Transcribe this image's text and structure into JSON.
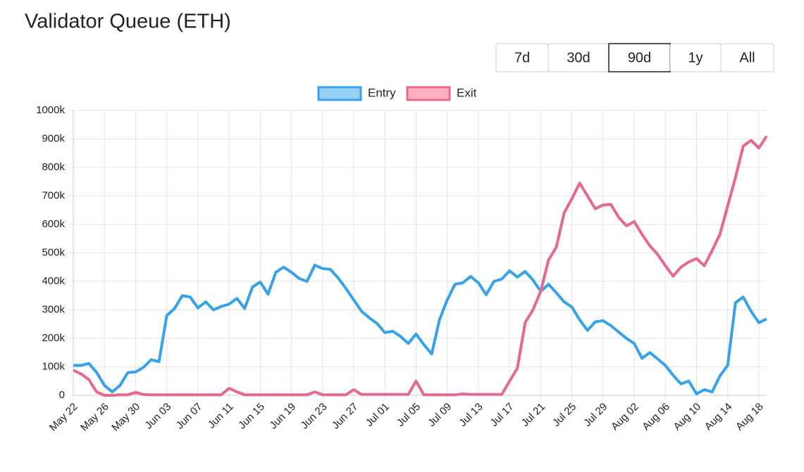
{
  "controls": {
    "ranges": [
      "7d",
      "30d",
      "90d",
      "1y",
      "All"
    ],
    "selected": "90d"
  },
  "chart_data": {
    "type": "line",
    "title": "Validator Queue (ETH)",
    "categories": [
      "May 22",
      null,
      null,
      null,
      "May 26",
      null,
      null,
      null,
      "May 30",
      null,
      null,
      null,
      "Jun 03",
      null,
      null,
      null,
      "Jun 07",
      null,
      null,
      null,
      "Jun 11",
      null,
      null,
      null,
      "Jun 15",
      null,
      null,
      null,
      "Jun 19",
      null,
      null,
      null,
      "Jun 23",
      null,
      null,
      null,
      "Jun 27",
      null,
      null,
      null,
      "Jul 01",
      null,
      null,
      null,
      "Jul 05",
      null,
      null,
      null,
      "Jul 09",
      null,
      null,
      null,
      "Jul 13",
      null,
      null,
      null,
      "Jul 17",
      null,
      null,
      null,
      "Jul 21",
      null,
      null,
      null,
      "Jul 25",
      null,
      null,
      null,
      "Jul 29",
      null,
      null,
      null,
      "Aug 02",
      null,
      null,
      null,
      "Aug 06",
      null,
      null,
      null,
      "Aug 10",
      null,
      null,
      null,
      "Aug 14",
      null,
      null,
      null,
      "Aug 18",
      null
    ],
    "series": [
      {
        "name": "Entry",
        "color": "#36a2eb",
        "fill": "#9ad0f5",
        "values": [
          105000,
          105000,
          112000,
          80000,
          35000,
          12000,
          35000,
          80000,
          82000,
          98000,
          125000,
          118000,
          280000,
          305000,
          350000,
          345000,
          307000,
          328000,
          300000,
          312000,
          320000,
          340000,
          305000,
          380000,
          398000,
          355000,
          432000,
          450000,
          432000,
          410000,
          400000,
          457000,
          445000,
          442000,
          412000,
          375000,
          335000,
          295000,
          272000,
          252000,
          220000,
          225000,
          207000,
          182000,
          215000,
          178000,
          145000,
          265000,
          335000,
          390000,
          395000,
          417000,
          395000,
          353000,
          400000,
          408000,
          437000,
          415000,
          435000,
          405000,
          365000,
          390000,
          360000,
          328000,
          310000,
          265000,
          228000,
          258000,
          262000,
          245000,
          222000,
          200000,
          182000,
          130000,
          150000,
          128000,
          105000,
          70000,
          40000,
          50000,
          5000,
          20000,
          12000,
          68000,
          105000,
          325000,
          345000,
          295000,
          255000,
          268000
        ]
      },
      {
        "name": "Exit",
        "color": "#e8688a",
        "fill": "#ffb1c1",
        "values": [
          88000,
          75000,
          55000,
          12000,
          0,
          0,
          2000,
          2000,
          10000,
          3000,
          2000,
          2000,
          2000,
          2000,
          2000,
          2000,
          2000,
          2000,
          2000,
          2000,
          25000,
          12000,
          2000,
          2000,
          2000,
          2000,
          2000,
          2000,
          2000,
          2000,
          2000,
          12000,
          2000,
          2000,
          2000,
          2000,
          20000,
          3000,
          3000,
          3000,
          3000,
          3000,
          3000,
          3000,
          50000,
          2000,
          2000,
          2000,
          2000,
          2000,
          5000,
          3000,
          3000,
          3000,
          3000,
          3000,
          50000,
          95000,
          255000,
          300000,
          365000,
          475000,
          520000,
          640000,
          690000,
          745000,
          700000,
          655000,
          668000,
          670000,
          625000,
          595000,
          610000,
          565000,
          525000,
          495000,
          455000,
          418000,
          450000,
          468000,
          480000,
          455000,
          508000,
          565000,
          665000,
          765000,
          875000,
          895000,
          868000,
          910000
        ]
      }
    ],
    "ylim": [
      0,
      1000000
    ],
    "yticks": [
      0,
      {
        "value": 100000,
        "label": "100k"
      },
      {
        "value": 200000,
        "label": "200k"
      },
      {
        "value": 300000,
        "label": "300k"
      },
      {
        "value": 400000,
        "label": "400k"
      },
      {
        "value": 500000,
        "label": "500k"
      },
      {
        "value": 600000,
        "label": "600k"
      },
      {
        "value": 700000,
        "label": "700k"
      },
      {
        "value": 800000,
        "label": "800k"
      },
      {
        "value": 900000,
        "label": "900k"
      },
      {
        "value": 1000000,
        "label": "1000k"
      }
    ],
    "grid": true
  }
}
